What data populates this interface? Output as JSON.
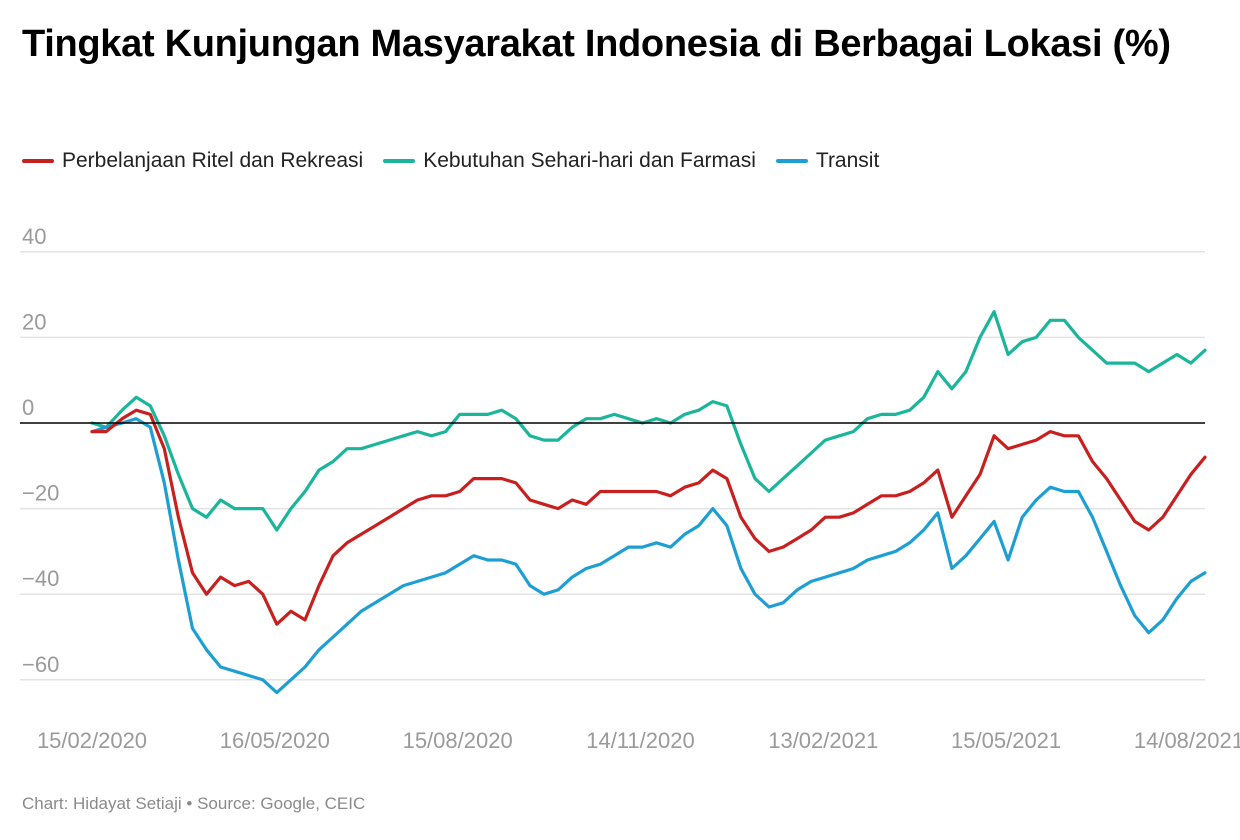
{
  "title": "Tingkat Kunjungan Masyarakat Indonesia di Berbagai Lokasi (%)",
  "footer": {
    "credit": "Chart: Hidayat Setiaji • Source: Google, CEIC"
  },
  "chart_data": {
    "type": "line",
    "title": "Tingkat Kunjungan Masyarakat Indonesia di Berbagai Lokasi (%)",
    "xlabel": "",
    "ylabel": "",
    "x_tick_labels": [
      "15/02/2020",
      "16/05/2020",
      "15/08/2020",
      "14/11/2020",
      "13/02/2021",
      "15/05/2021",
      "14/08/2021"
    ],
    "y_ticks": [
      -60,
      -40,
      -20,
      0,
      20,
      40
    ],
    "ylim": [
      -68,
      55
    ],
    "xlim": [
      "2020-02-15",
      "2021-08-22"
    ],
    "grid": "horizontal",
    "zero_line": true,
    "legend_position": "top-left",
    "series": [
      {
        "name": "Perbelanjaan Ritel dan Rekreasi",
        "color": "#c8201f",
        "points": [
          [
            "2020-02-15",
            -2
          ],
          [
            "2020-02-22",
            -2
          ],
          [
            "2020-03-01",
            1
          ],
          [
            "2020-03-08",
            3
          ],
          [
            "2020-03-15",
            2
          ],
          [
            "2020-03-22",
            -6
          ],
          [
            "2020-03-29",
            -22
          ],
          [
            "2020-04-05",
            -35
          ],
          [
            "2020-04-12",
            -40
          ],
          [
            "2020-04-19",
            -36
          ],
          [
            "2020-04-26",
            -38
          ],
          [
            "2020-05-03",
            -37
          ],
          [
            "2020-05-10",
            -40
          ],
          [
            "2020-05-17",
            -47
          ],
          [
            "2020-05-24",
            -44
          ],
          [
            "2020-05-31",
            -46
          ],
          [
            "2020-06-07",
            -38
          ],
          [
            "2020-06-14",
            -31
          ],
          [
            "2020-06-21",
            -28
          ],
          [
            "2020-06-28",
            -26
          ],
          [
            "2020-07-05",
            -24
          ],
          [
            "2020-07-12",
            -22
          ],
          [
            "2020-07-19",
            -20
          ],
          [
            "2020-07-26",
            -18
          ],
          [
            "2020-08-02",
            -17
          ],
          [
            "2020-08-09",
            -17
          ],
          [
            "2020-08-16",
            -16
          ],
          [
            "2020-08-23",
            -13
          ],
          [
            "2020-08-30",
            -13
          ],
          [
            "2020-09-06",
            -13
          ],
          [
            "2020-09-13",
            -14
          ],
          [
            "2020-09-20",
            -18
          ],
          [
            "2020-09-27",
            -19
          ],
          [
            "2020-10-04",
            -20
          ],
          [
            "2020-10-11",
            -18
          ],
          [
            "2020-10-18",
            -19
          ],
          [
            "2020-10-25",
            -16
          ],
          [
            "2020-11-01",
            -16
          ],
          [
            "2020-11-08",
            -16
          ],
          [
            "2020-11-15",
            -16
          ],
          [
            "2020-11-22",
            -16
          ],
          [
            "2020-11-29",
            -17
          ],
          [
            "2020-12-06",
            -15
          ],
          [
            "2020-12-13",
            -14
          ],
          [
            "2020-12-20",
            -11
          ],
          [
            "2020-12-27",
            -13
          ],
          [
            "2021-01-03",
            -22
          ],
          [
            "2021-01-10",
            -27
          ],
          [
            "2021-01-17",
            -30
          ],
          [
            "2021-01-24",
            -29
          ],
          [
            "2021-01-31",
            -27
          ],
          [
            "2021-02-07",
            -25
          ],
          [
            "2021-02-14",
            -22
          ],
          [
            "2021-02-21",
            -22
          ],
          [
            "2021-02-28",
            -21
          ],
          [
            "2021-03-07",
            -19
          ],
          [
            "2021-03-14",
            -17
          ],
          [
            "2021-03-21",
            -17
          ],
          [
            "2021-03-28",
            -16
          ],
          [
            "2021-04-04",
            -14
          ],
          [
            "2021-04-11",
            -11
          ],
          [
            "2021-04-18",
            -22
          ],
          [
            "2021-04-25",
            -17
          ],
          [
            "2021-05-02",
            -12
          ],
          [
            "2021-05-09",
            -3
          ],
          [
            "2021-05-16",
            -6
          ],
          [
            "2021-05-23",
            -5
          ],
          [
            "2021-05-30",
            -4
          ],
          [
            "2021-06-06",
            -2
          ],
          [
            "2021-06-13",
            -3
          ],
          [
            "2021-06-20",
            -3
          ],
          [
            "2021-06-27",
            -9
          ],
          [
            "2021-07-04",
            -13
          ],
          [
            "2021-07-11",
            -18
          ],
          [
            "2021-07-18",
            -23
          ],
          [
            "2021-07-25",
            -25
          ],
          [
            "2021-08-01",
            -22
          ],
          [
            "2021-08-08",
            -17
          ],
          [
            "2021-08-15",
            -12
          ],
          [
            "2021-08-22",
            -8
          ]
        ]
      },
      {
        "name": "Kebutuhan Sehari-hari dan Farmasi",
        "color": "#1ab59b",
        "points": [
          [
            "2020-02-15",
            0
          ],
          [
            "2020-02-22",
            -1
          ],
          [
            "2020-03-01",
            3
          ],
          [
            "2020-03-08",
            6
          ],
          [
            "2020-03-15",
            4
          ],
          [
            "2020-03-22",
            -3
          ],
          [
            "2020-03-29",
            -12
          ],
          [
            "2020-04-05",
            -20
          ],
          [
            "2020-04-12",
            -22
          ],
          [
            "2020-04-19",
            -18
          ],
          [
            "2020-04-26",
            -20
          ],
          [
            "2020-05-03",
            -20
          ],
          [
            "2020-05-10",
            -20
          ],
          [
            "2020-05-17",
            -25
          ],
          [
            "2020-05-24",
            -20
          ],
          [
            "2020-05-31",
            -16
          ],
          [
            "2020-06-07",
            -11
          ],
          [
            "2020-06-14",
            -9
          ],
          [
            "2020-06-21",
            -6
          ],
          [
            "2020-06-28",
            -6
          ],
          [
            "2020-07-05",
            -5
          ],
          [
            "2020-07-12",
            -4
          ],
          [
            "2020-07-19",
            -3
          ],
          [
            "2020-07-26",
            -2
          ],
          [
            "2020-08-02",
            -3
          ],
          [
            "2020-08-09",
            -2
          ],
          [
            "2020-08-16",
            2
          ],
          [
            "2020-08-23",
            2
          ],
          [
            "2020-08-30",
            2
          ],
          [
            "2020-09-06",
            3
          ],
          [
            "2020-09-13",
            1
          ],
          [
            "2020-09-20",
            -3
          ],
          [
            "2020-09-27",
            -4
          ],
          [
            "2020-10-04",
            -4
          ],
          [
            "2020-10-11",
            -1
          ],
          [
            "2020-10-18",
            1
          ],
          [
            "2020-10-25",
            1
          ],
          [
            "2020-11-01",
            2
          ],
          [
            "2020-11-08",
            1
          ],
          [
            "2020-11-15",
            0
          ],
          [
            "2020-11-22",
            1
          ],
          [
            "2020-11-29",
            0
          ],
          [
            "2020-12-06",
            2
          ],
          [
            "2020-12-13",
            3
          ],
          [
            "2020-12-20",
            5
          ],
          [
            "2020-12-27",
            4
          ],
          [
            "2021-01-03",
            -5
          ],
          [
            "2021-01-10",
            -13
          ],
          [
            "2021-01-17",
            -16
          ],
          [
            "2021-01-24",
            -13
          ],
          [
            "2021-01-31",
            -10
          ],
          [
            "2021-02-07",
            -7
          ],
          [
            "2021-02-14",
            -4
          ],
          [
            "2021-02-21",
            -3
          ],
          [
            "2021-02-28",
            -2
          ],
          [
            "2021-03-07",
            1
          ],
          [
            "2021-03-14",
            2
          ],
          [
            "2021-03-21",
            2
          ],
          [
            "2021-03-28",
            3
          ],
          [
            "2021-04-04",
            6
          ],
          [
            "2021-04-11",
            12
          ],
          [
            "2021-04-18",
            8
          ],
          [
            "2021-04-25",
            12
          ],
          [
            "2021-05-02",
            20
          ],
          [
            "2021-05-09",
            26
          ],
          [
            "2021-05-16",
            16
          ],
          [
            "2021-05-23",
            19
          ],
          [
            "2021-05-30",
            20
          ],
          [
            "2021-06-06",
            24
          ],
          [
            "2021-06-13",
            24
          ],
          [
            "2021-06-20",
            20
          ],
          [
            "2021-06-27",
            17
          ],
          [
            "2021-07-04",
            14
          ],
          [
            "2021-07-11",
            14
          ],
          [
            "2021-07-18",
            14
          ],
          [
            "2021-07-25",
            12
          ],
          [
            "2021-08-01",
            14
          ],
          [
            "2021-08-08",
            16
          ],
          [
            "2021-08-15",
            14
          ],
          [
            "2021-08-22",
            17
          ]
        ]
      },
      {
        "name": "Transit",
        "color": "#1e9fd4",
        "points": [
          [
            "2020-02-15",
            -2
          ],
          [
            "2020-02-22",
            -1
          ],
          [
            "2020-03-01",
            0
          ],
          [
            "2020-03-08",
            1
          ],
          [
            "2020-03-15",
            -1
          ],
          [
            "2020-03-22",
            -14
          ],
          [
            "2020-03-29",
            -32
          ],
          [
            "2020-04-05",
            -48
          ],
          [
            "2020-04-12",
            -53
          ],
          [
            "2020-04-19",
            -57
          ],
          [
            "2020-04-26",
            -58
          ],
          [
            "2020-05-03",
            -59
          ],
          [
            "2020-05-10",
            -60
          ],
          [
            "2020-05-17",
            -63
          ],
          [
            "2020-05-24",
            -60
          ],
          [
            "2020-05-31",
            -57
          ],
          [
            "2020-06-07",
            -53
          ],
          [
            "2020-06-14",
            -50
          ],
          [
            "2020-06-21",
            -47
          ],
          [
            "2020-06-28",
            -44
          ],
          [
            "2020-07-05",
            -42
          ],
          [
            "2020-07-12",
            -40
          ],
          [
            "2020-07-19",
            -38
          ],
          [
            "2020-07-26",
            -37
          ],
          [
            "2020-08-02",
            -36
          ],
          [
            "2020-08-09",
            -35
          ],
          [
            "2020-08-16",
            -33
          ],
          [
            "2020-08-23",
            -31
          ],
          [
            "2020-08-30",
            -32
          ],
          [
            "2020-09-06",
            -32
          ],
          [
            "2020-09-13",
            -33
          ],
          [
            "2020-09-20",
            -38
          ],
          [
            "2020-09-27",
            -40
          ],
          [
            "2020-10-04",
            -39
          ],
          [
            "2020-10-11",
            -36
          ],
          [
            "2020-10-18",
            -34
          ],
          [
            "2020-10-25",
            -33
          ],
          [
            "2020-11-01",
            -31
          ],
          [
            "2020-11-08",
            -29
          ],
          [
            "2020-11-15",
            -29
          ],
          [
            "2020-11-22",
            -28
          ],
          [
            "2020-11-29",
            -29
          ],
          [
            "2020-12-06",
            -26
          ],
          [
            "2020-12-13",
            -24
          ],
          [
            "2020-12-20",
            -20
          ],
          [
            "2020-12-27",
            -24
          ],
          [
            "2021-01-03",
            -34
          ],
          [
            "2021-01-10",
            -40
          ],
          [
            "2021-01-17",
            -43
          ],
          [
            "2021-01-24",
            -42
          ],
          [
            "2021-01-31",
            -39
          ],
          [
            "2021-02-07",
            -37
          ],
          [
            "2021-02-14",
            -36
          ],
          [
            "2021-02-21",
            -35
          ],
          [
            "2021-02-28",
            -34
          ],
          [
            "2021-03-07",
            -32
          ],
          [
            "2021-03-14",
            -31
          ],
          [
            "2021-03-21",
            -30
          ],
          [
            "2021-03-28",
            -28
          ],
          [
            "2021-04-04",
            -25
          ],
          [
            "2021-04-11",
            -21
          ],
          [
            "2021-04-18",
            -34
          ],
          [
            "2021-04-25",
            -31
          ],
          [
            "2021-05-02",
            -27
          ],
          [
            "2021-05-09",
            -23
          ],
          [
            "2021-05-16",
            -32
          ],
          [
            "2021-05-23",
            -22
          ],
          [
            "2021-05-30",
            -18
          ],
          [
            "2021-06-06",
            -15
          ],
          [
            "2021-06-13",
            -16
          ],
          [
            "2021-06-20",
            -16
          ],
          [
            "2021-06-27",
            -22
          ],
          [
            "2021-07-04",
            -30
          ],
          [
            "2021-07-11",
            -38
          ],
          [
            "2021-07-18",
            -45
          ],
          [
            "2021-07-25",
            -49
          ],
          [
            "2021-08-01",
            -46
          ],
          [
            "2021-08-08",
            -41
          ],
          [
            "2021-08-15",
            -37
          ],
          [
            "2021-08-22",
            -35
          ]
        ]
      }
    ]
  }
}
